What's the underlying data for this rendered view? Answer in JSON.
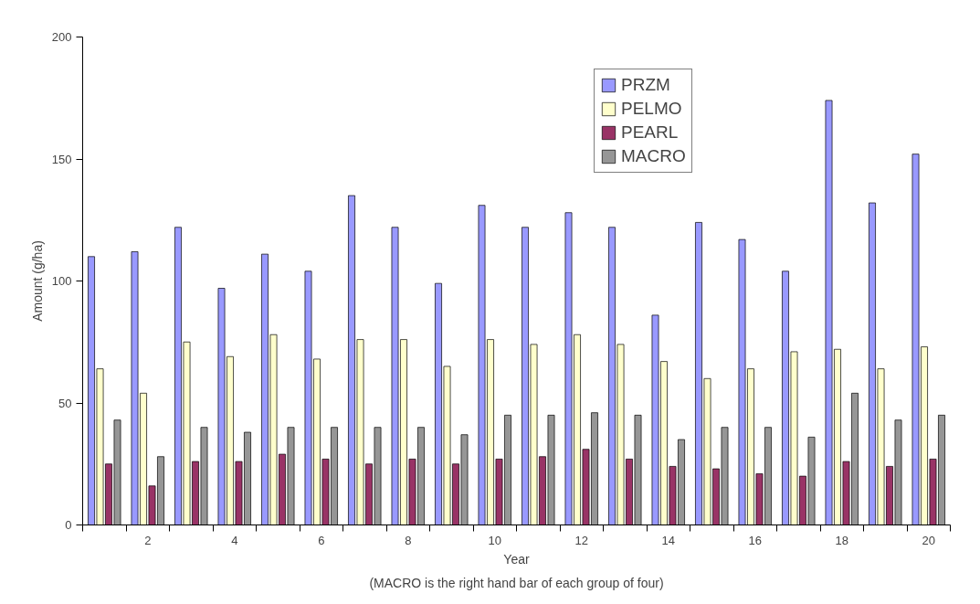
{
  "chart_data": {
    "type": "bar",
    "xlabel": "Year",
    "ylabel": "Amount (g/ha)",
    "annotations": [
      "(MACRO is the right hand bar of each group of four)"
    ],
    "categories": [
      null,
      "2",
      null,
      "4",
      null,
      "6",
      null,
      "8",
      null,
      "10",
      null,
      "12",
      null,
      "14",
      null,
      "16",
      null,
      "18",
      null,
      "20"
    ],
    "series": [
      {
        "name": "PRZM",
        "color": "#9999ff",
        "values": [
          110,
          112,
          122,
          97,
          111,
          104,
          135,
          122,
          99,
          131,
          122,
          128,
          122,
          86,
          124,
          117,
          104,
          174,
          132,
          152
        ]
      },
      {
        "name": "PELMO",
        "color": "#ffffcc",
        "values": [
          64,
          54,
          75,
          69,
          78,
          68,
          76,
          76,
          65,
          76,
          74,
          78,
          74,
          67,
          60,
          64,
          71,
          72,
          64,
          73
        ]
      },
      {
        "name": "PEARL",
        "color": "#993366",
        "values": [
          25,
          16,
          26,
          26,
          29,
          27,
          25,
          27,
          25,
          27,
          28,
          31,
          27,
          24,
          23,
          21,
          20,
          26,
          24,
          27
        ]
      },
      {
        "name": "MACRO",
        "color": "#969696",
        "values": [
          43,
          28,
          40,
          38,
          40,
          40,
          40,
          40,
          37,
          45,
          45,
          46,
          45,
          35,
          40,
          40,
          36,
          54,
          43,
          45
        ]
      }
    ],
    "ylim": [
      0,
      200
    ],
    "yticks": [
      0,
      50,
      100,
      150,
      200
    ],
    "grid": false,
    "legend": "top right"
  }
}
